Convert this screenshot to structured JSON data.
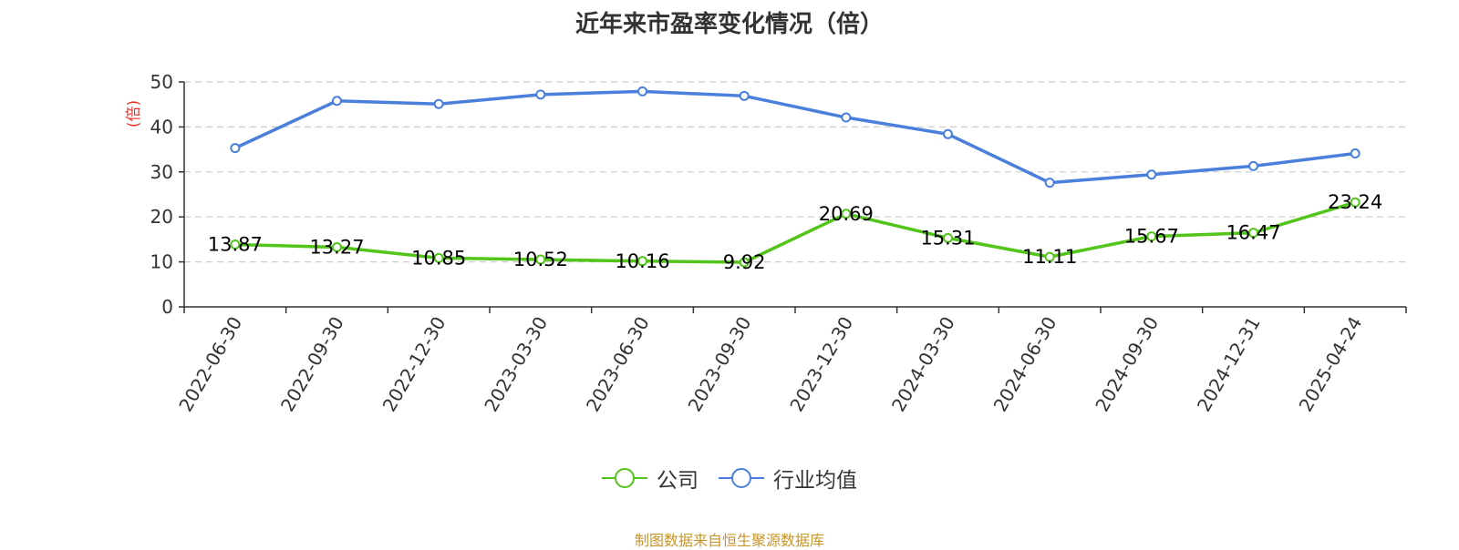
{
  "chart_data": {
    "type": "line",
    "title": "近年来市盈率变化情况（倍）",
    "ylabel": "(倍)",
    "ylim": [
      0,
      50
    ],
    "yticks": [
      0,
      10,
      20,
      30,
      40,
      50
    ],
    "categories": [
      "2022-06-30",
      "2022-09-30",
      "2022-12-30",
      "2023-03-30",
      "2023-06-30",
      "2023-09-30",
      "2023-12-30",
      "2024-03-30",
      "2024-06-30",
      "2024-09-30",
      "2024-12-31",
      "2025-04-24"
    ],
    "series": [
      {
        "name": "公司",
        "color": "#52c41a",
        "values": [
          13.87,
          13.27,
          10.85,
          10.52,
          10.16,
          9.92,
          20.69,
          15.31,
          11.11,
          15.67,
          16.47,
          23.24
        ],
        "labels": [
          "13.87",
          "13.27",
          "10.85",
          "10.52",
          "10.16",
          "9.92",
          "20.69",
          "15.31",
          "11.11",
          "15.67",
          "16.47",
          "23.24"
        ]
      },
      {
        "name": "行业均值",
        "color": "#4a7fdc",
        "values": [
          35.3,
          45.8,
          45.1,
          47.2,
          47.9,
          46.9,
          42.1,
          38.4,
          27.6,
          29.4,
          31.3,
          34.1
        ]
      }
    ],
    "grid": true,
    "legend_position": "bottom"
  },
  "colors": {
    "ylabel": "#e8302a",
    "source": "#c8952a"
  },
  "source": "制图数据来自恒生聚源数据库"
}
